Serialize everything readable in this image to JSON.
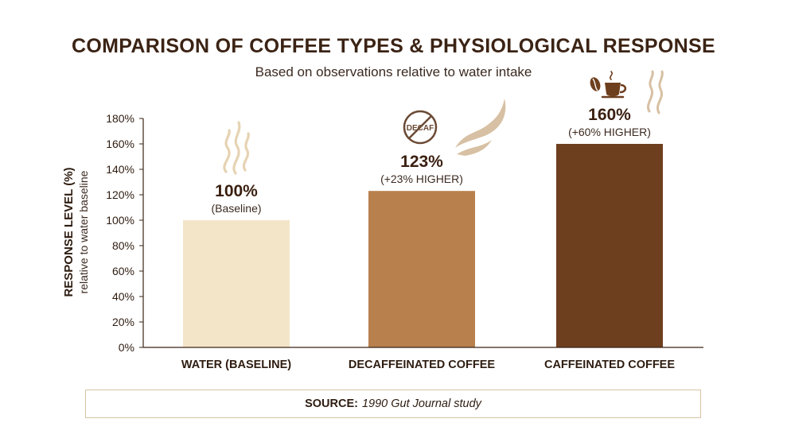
{
  "title": "COMPARISON OF COFFEE TYPES & PHYSIOLOGICAL RESPONSE",
  "subtitle": "Based on observations relative to water intake",
  "colors": {
    "water": "#f3e5c8",
    "decaf": "#b8804c",
    "caffeinated": "#6e3f1e",
    "steam": "#e6d3b3",
    "text": "#2e1c10"
  },
  "chart_data": {
    "type": "bar",
    "title": "COMPARISON OF COFFEE TYPES & PHYSIOLOGICAL RESPONSE",
    "subtitle": "Based on observations relative to water intake",
    "ylabel": "RESPONSE LEVEL (%)",
    "ylabel_sub": "relative to water baseline",
    "xlabel": "",
    "ylim": [
      0,
      180
    ],
    "yticks": [
      "0%",
      "20%",
      "40%",
      "60%",
      "80%",
      "100%",
      "120%",
      "140%",
      "160%",
      "180%"
    ],
    "grid": false,
    "categories": [
      "WATER (BASELINE)",
      "DECAFFEINATED COFFEE",
      "CAFFEINATED COFFEE"
    ],
    "values": [
      100,
      123,
      160
    ],
    "data_labels": [
      "100%",
      "123%",
      "160%"
    ],
    "annotations": [
      "(Baseline)",
      "(+23% HIGHER)",
      "(+60% HIGHER)"
    ],
    "icons": [
      "steam-icon",
      "no-decaf-icon",
      "coffee-cup-icon"
    ],
    "icon_text": [
      "",
      "DECAF",
      ""
    ]
  },
  "source": {
    "label": "SOURCE:",
    "text": "1990 Gut Journal study"
  }
}
